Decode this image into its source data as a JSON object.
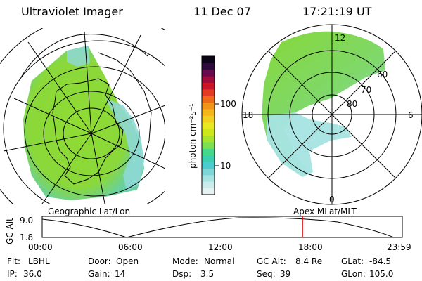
{
  "header": {
    "instrument": "Ultraviolet Imager",
    "date": "11 Dec 07",
    "time": "17:21:19 UT"
  },
  "left_panel": {
    "caption": "Geographic Lat/Lon"
  },
  "right_panel": {
    "caption": "Apex MLat/MLT",
    "mlt_labels": {
      "top": "12",
      "left": "18",
      "right": "6",
      "bottom": "0"
    },
    "lat_labels": [
      "60",
      "70",
      "80"
    ]
  },
  "colorbar": {
    "unit_label": "photon cm⁻²s⁻¹",
    "ticks": [
      "100",
      "10"
    ],
    "colors": [
      "#e6f2f2",
      "#ccecec",
      "#a8e3e3",
      "#7fd6d6",
      "#4ccccc",
      "#3ccfb0",
      "#46d98a",
      "#7ae052",
      "#a8e42e",
      "#cde81a",
      "#e8e820",
      "#f2d020",
      "#f5b61c",
      "#f29418",
      "#ee6a1a",
      "#e33a24",
      "#cc1428",
      "#a00c3c",
      "#6a0a4e",
      "#2e0a3c",
      "#0c0418"
    ]
  },
  "timeline": {
    "ylabel": "GC Alt",
    "ymax_label": "9.0",
    "ymin_label": "1.8",
    "ticks": [
      "00:00",
      "06:00",
      "12:00",
      "18:00",
      "23:59"
    ],
    "current_hour": 17.36
  },
  "status": {
    "row1": [
      {
        "label": "Flt:",
        "value": "LBHL"
      },
      {
        "label": "Door:",
        "value": "Open"
      },
      {
        "label": "Mode:",
        "value": "Normal"
      },
      {
        "label": "GC Alt:",
        "value": "8.4 Re"
      },
      {
        "label": "GLat:",
        "value": "-84.5"
      }
    ],
    "row2": [
      {
        "label": "IP:",
        "value": "36.0"
      },
      {
        "label": "Gain:",
        "value": "14"
      },
      {
        "label": "Dsp:",
        "value": "3.5"
      },
      {
        "label": "Seq:",
        "value": "39"
      },
      {
        "label": "GLon:",
        "value": "105.0"
      }
    ]
  },
  "colors": {
    "aurora_green": "#8ad83a",
    "aurora_cyan": "#7fd6d6",
    "marker_red": "#e01010"
  }
}
